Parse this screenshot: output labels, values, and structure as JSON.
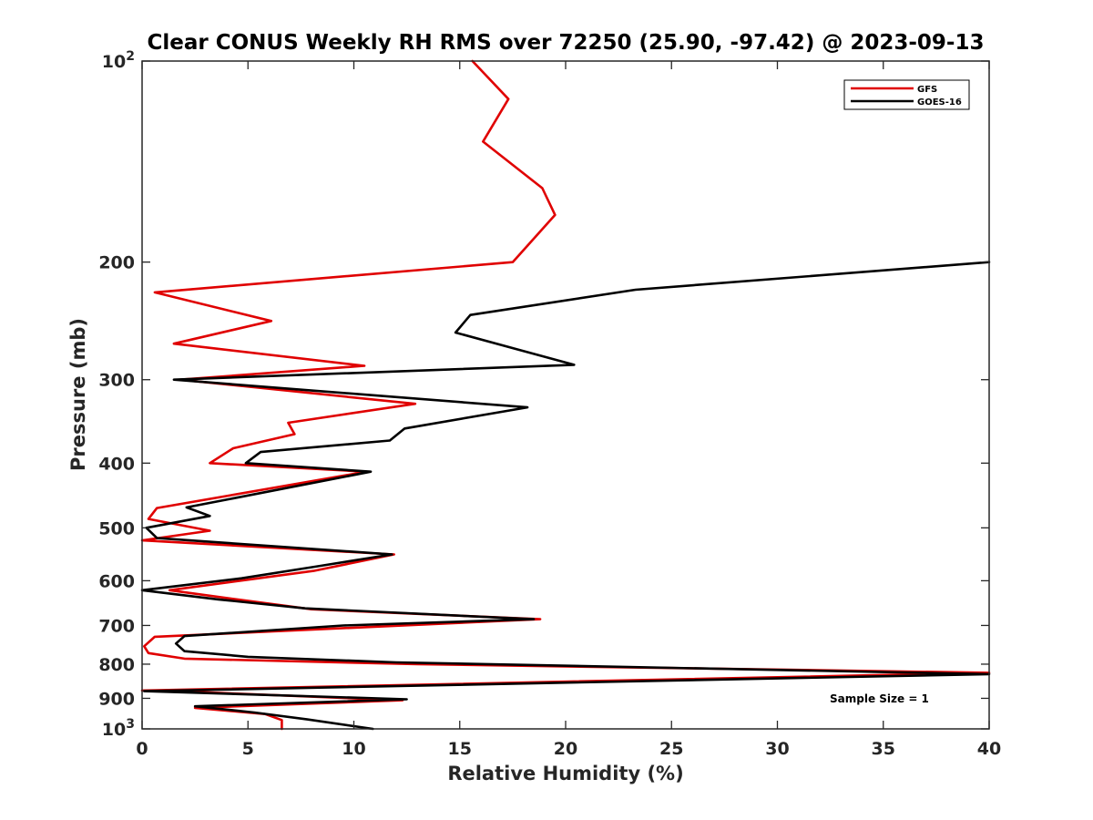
{
  "chart_data": {
    "type": "line",
    "title": "Clear CONUS Weekly RH RMS over 72250 (25.90, -97.42) @ 2023-09-13",
    "xlabel": "Relative Humidity (%)",
    "ylabel": "Pressure (mb)",
    "xlim": [
      0,
      40
    ],
    "ylim": [
      100,
      1000
    ],
    "y_scale": "log",
    "y_reversed": true,
    "grid": false,
    "legend_position": "top-right",
    "x_ticks": [
      0,
      5,
      10,
      15,
      20,
      25,
      30,
      35,
      40
    ],
    "x_tick_labels": [
      "0",
      "5",
      "10",
      "15",
      "20",
      "25",
      "30",
      "35",
      "40"
    ],
    "y_ticks": [
      100,
      200,
      300,
      400,
      500,
      600,
      700,
      800,
      900,
      1000
    ],
    "y_tick_labels": [
      {
        "base": "10",
        "exp": "2"
      },
      {
        "base": "200",
        "exp": ""
      },
      {
        "base": "300",
        "exp": ""
      },
      {
        "base": "400",
        "exp": ""
      },
      {
        "base": "500",
        "exp": ""
      },
      {
        "base": "600",
        "exp": ""
      },
      {
        "base": "700",
        "exp": ""
      },
      {
        "base": "800",
        "exp": ""
      },
      {
        "base": "900",
        "exp": ""
      },
      {
        "base": "10",
        "exp": "3"
      }
    ],
    "annotation": "Sample Size = 1",
    "series": [
      {
        "name": "GFS",
        "color": "#e00000",
        "points": [
          [
            15.6,
            100
          ],
          [
            17.3,
            114
          ],
          [
            16.1,
            132
          ],
          [
            18.9,
            155
          ],
          [
            19.5,
            170
          ],
          [
            17.5,
            200
          ],
          [
            0.6,
            222
          ],
          [
            6.1,
            245
          ],
          [
            1.5,
            265
          ],
          [
            10.5,
            286
          ],
          [
            1.8,
            300
          ],
          [
            12.9,
            326
          ],
          [
            6.9,
            348
          ],
          [
            7.2,
            362
          ],
          [
            4.3,
            380
          ],
          [
            3.2,
            400
          ],
          [
            10.6,
            412
          ],
          [
            0.7,
            467
          ],
          [
            0.3,
            485
          ],
          [
            3.2,
            505
          ],
          [
            0.0,
            522
          ],
          [
            11.9,
            548
          ],
          [
            8.1,
            580
          ],
          [
            1.3,
            620
          ],
          [
            4.5,
            640
          ],
          [
            8.0,
            662
          ],
          [
            18.8,
            685
          ],
          [
            0.6,
            728
          ],
          [
            0.1,
            752
          ],
          [
            0.3,
            770
          ],
          [
            2.0,
            785
          ],
          [
            13.0,
            800
          ],
          [
            40.0,
            824
          ],
          [
            0.0,
            876
          ],
          [
            0.9,
            876
          ],
          [
            12.3,
            906
          ],
          [
            2.5,
            930
          ],
          [
            5.8,
            950
          ],
          [
            6.6,
            970
          ],
          [
            6.6,
            1000
          ]
        ]
      },
      {
        "name": "GOES-16",
        "color": "#000000",
        "points": [
          [
            40.0,
            200
          ],
          [
            23.3,
            220
          ],
          [
            15.5,
            240
          ],
          [
            14.8,
            255
          ],
          [
            20.4,
            285
          ],
          [
            1.5,
            300
          ],
          [
            18.2,
            330
          ],
          [
            12.4,
            355
          ],
          [
            11.7,
            370
          ],
          [
            5.6,
            385
          ],
          [
            4.9,
            400
          ],
          [
            10.8,
            412
          ],
          [
            2.1,
            466
          ],
          [
            3.2,
            480
          ],
          [
            0.2,
            500
          ],
          [
            0.7,
            518
          ],
          [
            11.8,
            548
          ],
          [
            8.4,
            570
          ],
          [
            4.7,
            595
          ],
          [
            0.0,
            620
          ],
          [
            3.6,
            640
          ],
          [
            7.7,
            660
          ],
          [
            18.5,
            685
          ],
          [
            9.5,
            700
          ],
          [
            2.0,
            726
          ],
          [
            1.6,
            745
          ],
          [
            2.0,
            765
          ],
          [
            5.0,
            780
          ],
          [
            12.0,
            795
          ],
          [
            40.0,
            828
          ],
          [
            0.1,
            878
          ],
          [
            12.5,
            903
          ],
          [
            2.5,
            925
          ],
          [
            5.3,
            945
          ],
          [
            7.8,
            968
          ],
          [
            10.9,
            1000
          ]
        ]
      }
    ]
  }
}
